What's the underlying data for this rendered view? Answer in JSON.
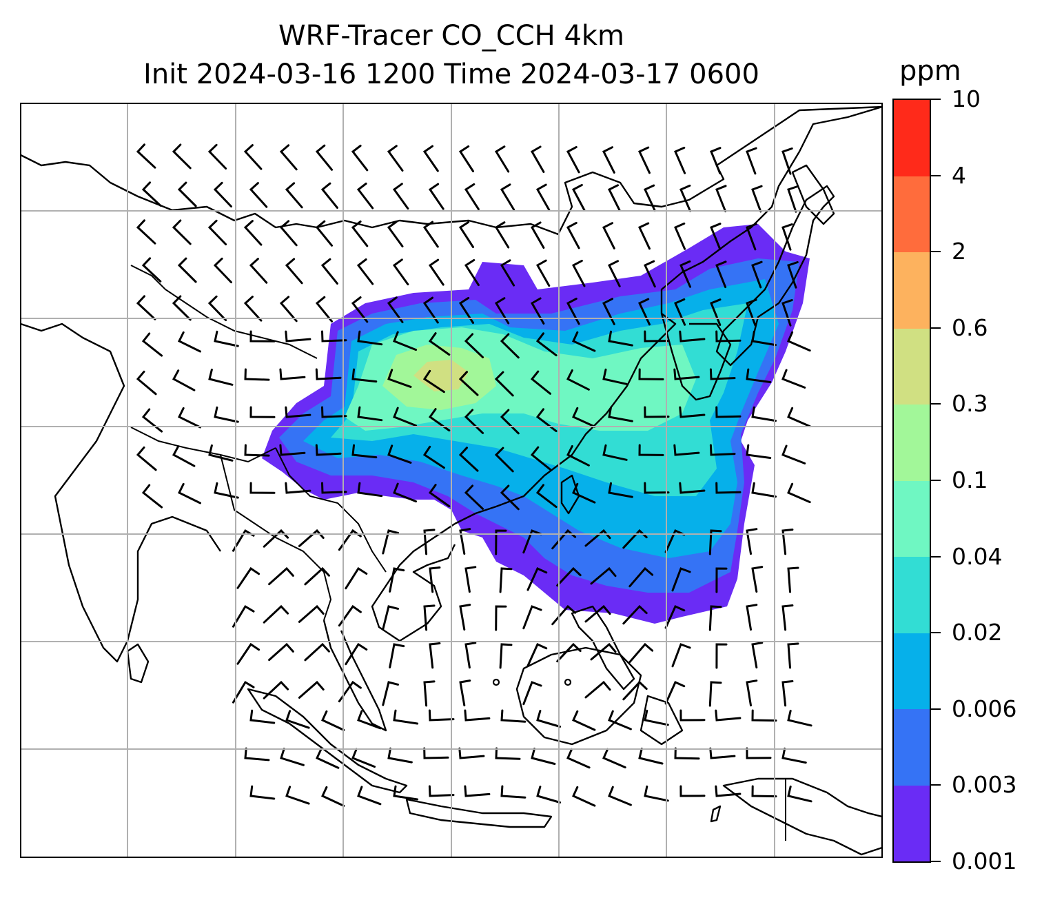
{
  "title": {
    "line1": "WRF-Tracer CO_CCH 4km",
    "line2": "Init 2024-03-16 1200 Time 2024-03-17 0600"
  },
  "colorbar": {
    "unit": "ppm",
    "tick_labels": [
      "0.001",
      "0.003",
      "0.006",
      "0.02",
      "0.04",
      "0.1",
      "0.3",
      "0.6",
      "2",
      "4",
      "10"
    ],
    "colors": [
      "#6a2cf5",
      "#3573f5",
      "#06b0ea",
      "#32ddd4",
      "#6ff7c2",
      "#a2f799",
      "#d0e082",
      "#fdb25e",
      "#ff6c3c",
      "#ff2a1a"
    ]
  },
  "map": {
    "gridlines": true,
    "features": [
      "coastlines",
      "country borders",
      "CO tracer plume",
      "wind barbs"
    ]
  }
}
